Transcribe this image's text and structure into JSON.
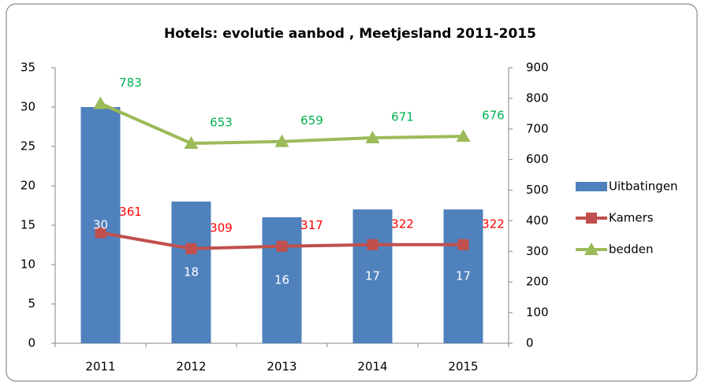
{
  "chart_data": {
    "type": "bar",
    "title": "Hotels: evolutie aanbod , Meetjesland 2011-2015",
    "categories": [
      "2011",
      "2012",
      "2013",
      "2014",
      "2015"
    ],
    "series": [
      {
        "name": "Uitbatingen",
        "type": "bar",
        "color": "#4f81bd",
        "label_color": "#ffffff",
        "values": [
          30,
          18,
          16,
          17,
          17
        ]
      },
      {
        "name": "Kamers",
        "type": "line",
        "axis": "y2",
        "color": "#c0504d",
        "marker": "square",
        "label_color": "#ff0000",
        "values": [
          361,
          309,
          317,
          322,
          322
        ]
      },
      {
        "name": "bedden",
        "type": "line",
        "axis": "y2",
        "color": "#9bbb59",
        "marker": "triangle",
        "label_color": "#00b050",
        "values": [
          783,
          653,
          659,
          671,
          676
        ]
      }
    ],
    "ylim": [
      0,
      35
    ],
    "yticks": [
      0,
      5,
      10,
      15,
      20,
      25,
      30,
      35
    ],
    "y2lim": [
      0,
      900
    ],
    "y2ticks": [
      0,
      100,
      200,
      300,
      400,
      500,
      600,
      700,
      800,
      900
    ],
    "grid": false,
    "legend": "right"
  }
}
